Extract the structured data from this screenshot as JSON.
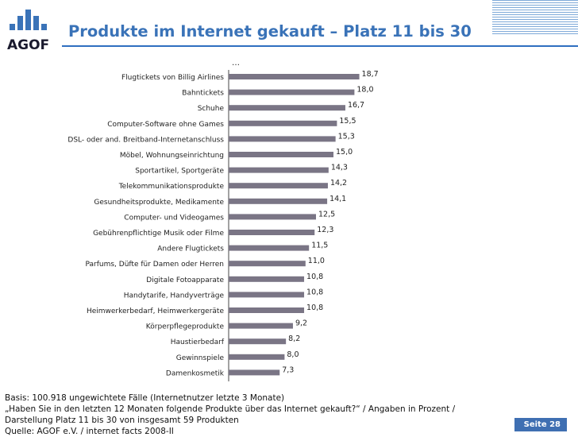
{
  "header": {
    "logo_text": "AGOF",
    "title": "Produkte im Internet gekauft – Platz 11 bis 30"
  },
  "colors": {
    "brand_blue": "#3a73b8",
    "bar_fill": "#7a7585"
  },
  "chart_data": {
    "type": "bar",
    "orientation": "horizontal",
    "title": "Produkte im Internet gekauft – Platz 11 bis 30",
    "ellipsis": "…",
    "categories": [
      "Flugtickets von Billig Airlines",
      "Bahntickets",
      "Schuhe",
      "Computer-Software ohne Games",
      "DSL- oder and. Breitband-Internetanschluss",
      "Möbel, Wohnungseinrichtung",
      "Sportartikel, Sportgeräte",
      "Telekommunikationsprodukte",
      "Gesundheitsprodukte, Medikamente",
      "Computer- und Videogames",
      "Gebührenpflichtige Musik oder Filme",
      "Andere Flugtickets",
      "Parfums, Düfte für Damen oder Herren",
      "Digitale Fotoapparate",
      "Handytarife, Handyverträge",
      "Heimwerkerbedarf, Heimwerkergeräte",
      "Körperpflegeprodukte",
      "Haustierbedarf",
      "Gewinnspiele",
      "Damenkosmetik"
    ],
    "values": [
      18.7,
      18.0,
      16.7,
      15.5,
      15.3,
      15.0,
      14.3,
      14.2,
      14.1,
      12.5,
      12.3,
      11.5,
      11.0,
      10.8,
      10.8,
      10.8,
      9.2,
      8.2,
      8.0,
      7.3
    ],
    "value_labels": [
      "18,7",
      "18,0",
      "16,7",
      "15,5",
      "15,3",
      "15,0",
      "14,3",
      "14,2",
      "14,1",
      "12,5",
      "12,3",
      "11,5",
      "11,0",
      "10,8",
      "10,8",
      "10,8",
      "9,2",
      "8,2",
      "8,0",
      "7,3"
    ],
    "xlabel": "",
    "ylabel": "",
    "xlim": [
      0,
      30
    ],
    "grid": false,
    "unit": "Prozent"
  },
  "footnote": {
    "line1": "Basis: 100.918 ungewichtete Fälle (Internetnutzer letzte 3 Monate)",
    "line2": "„Haben Sie in den letzten 12 Monaten folgende Produkte über das Internet gekauft?“ / Angaben in Prozent /",
    "line3": "Darstellung Platz 11 bis 30 von insgesamt 59 Produkten",
    "line4": "Quelle: AGOF e.V. / internet facts 2008-II"
  },
  "page": {
    "label": "Seite 28"
  }
}
